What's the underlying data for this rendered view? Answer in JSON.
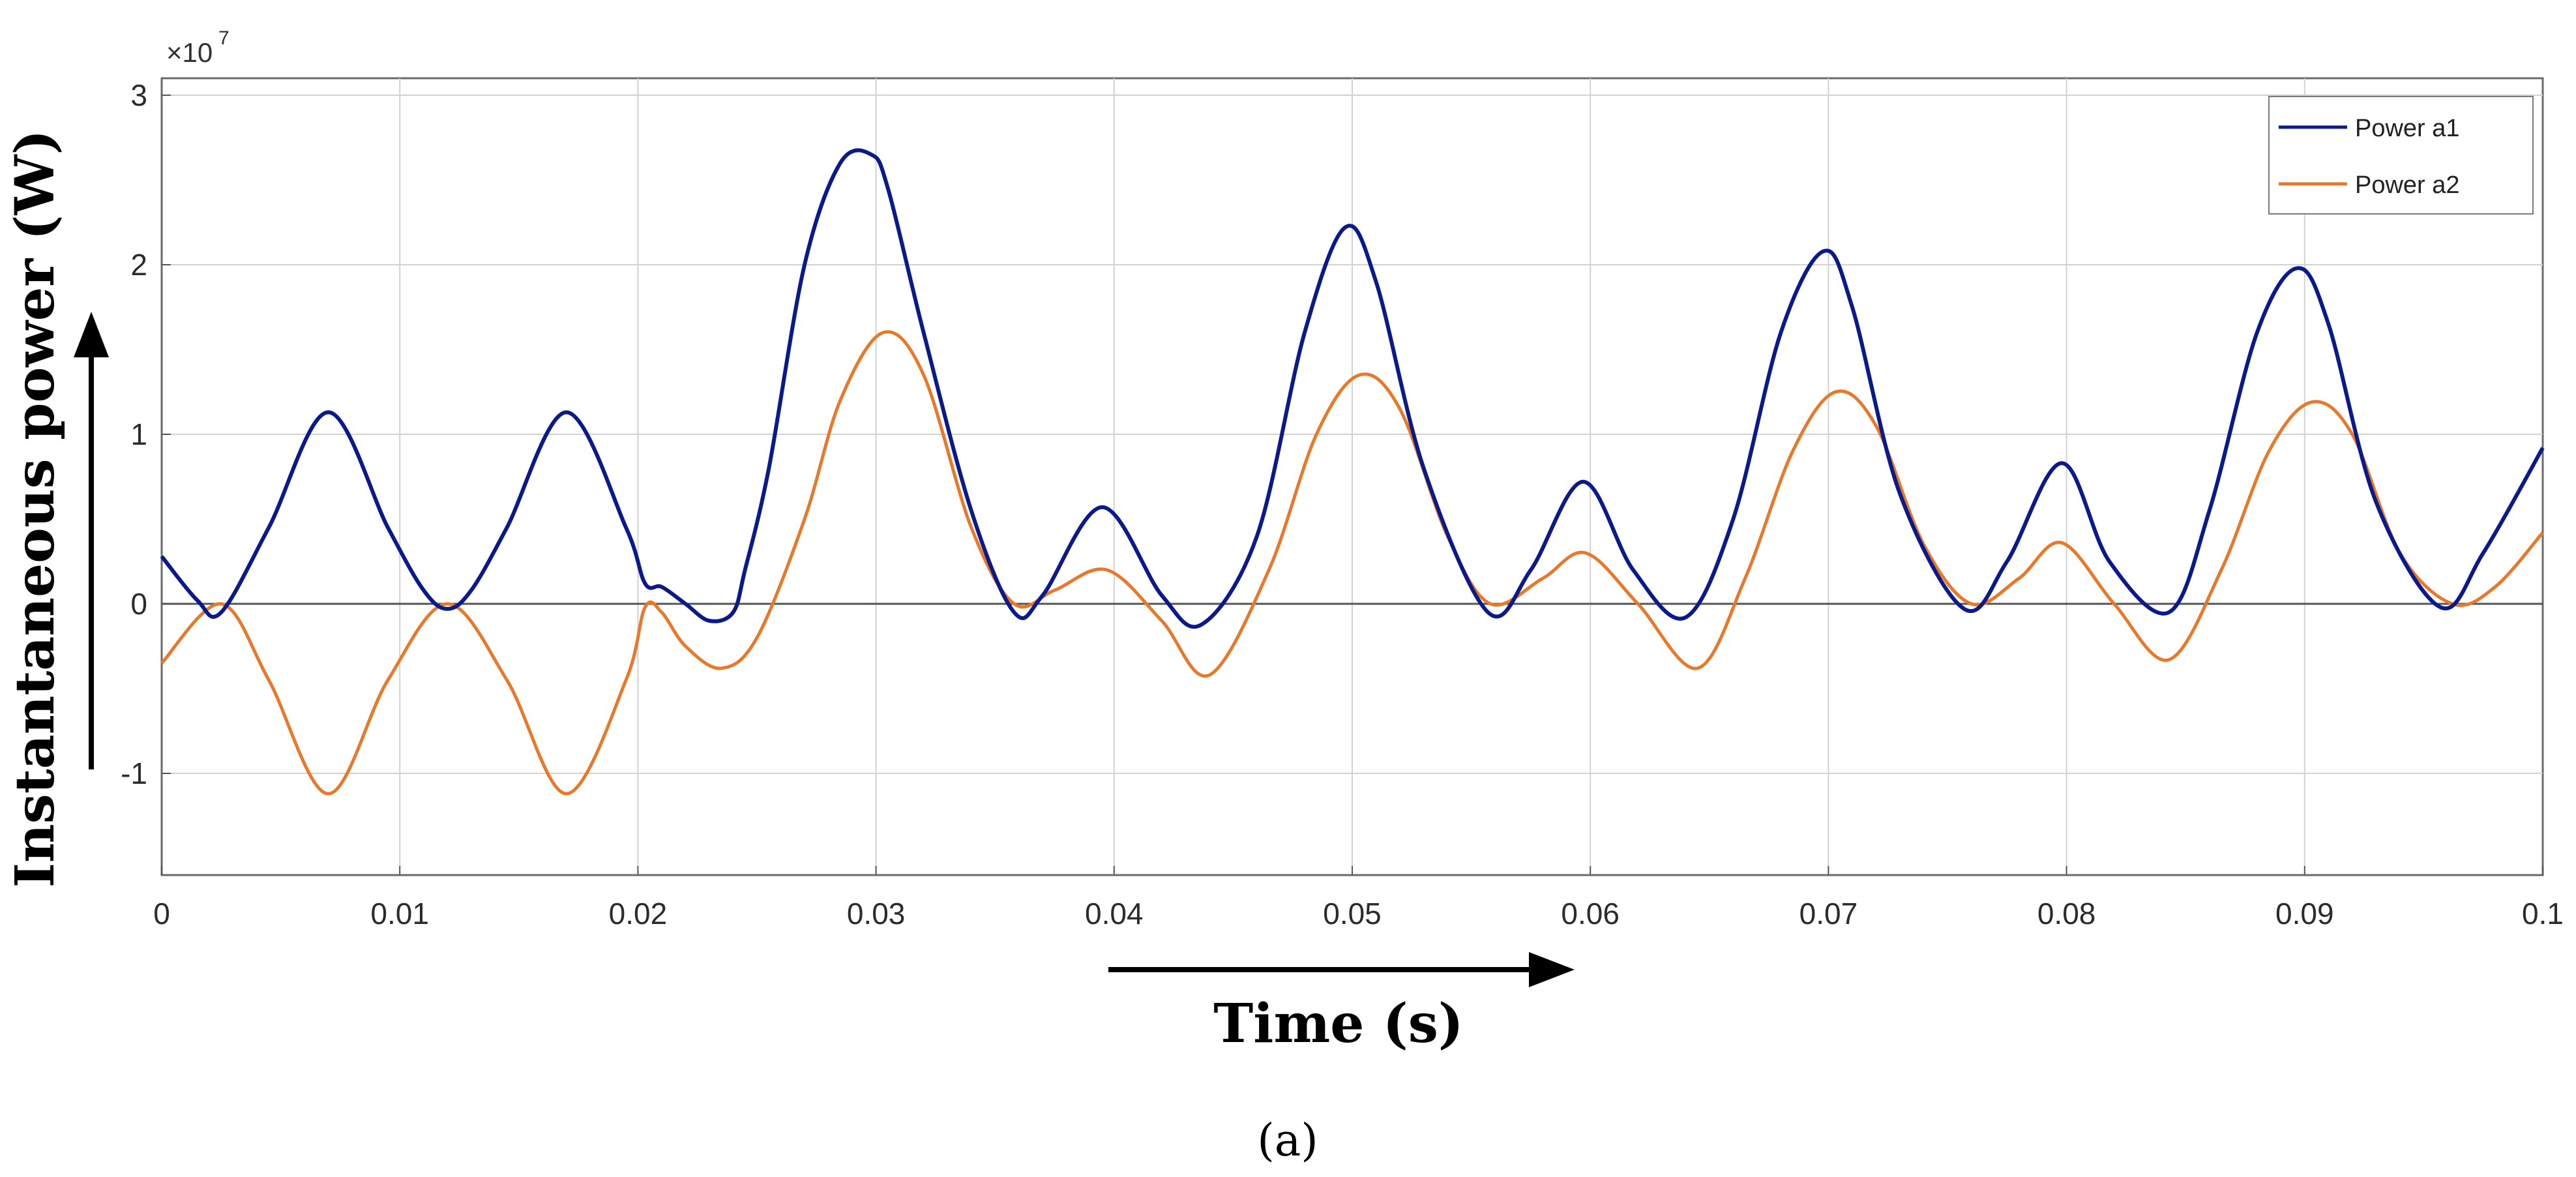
{
  "chart_data": {
    "type": "line",
    "title": "",
    "xlabel": "Time (s)",
    "ylabel": "Instantaneous power (W)",
    "y_exponent": "×10^7",
    "xlim": [
      0,
      0.1
    ],
    "ylim": [
      -1.6,
      3.1
    ],
    "xticks": [
      "0",
      "0.01",
      "0.02",
      "0.03",
      "0.04",
      "0.05",
      "0.06",
      "0.07",
      "0.08",
      "0.09",
      "0.1"
    ],
    "yticks": [
      "3",
      "2",
      "1",
      "0",
      "-1"
    ],
    "grid": true,
    "legend_position": "top-right",
    "series": [
      {
        "name": "Power a1",
        "color": "#0a1a8a",
        "x": [
          0,
          0.0015,
          0.0025,
          0.0045,
          0.007,
          0.0095,
          0.011,
          0.012,
          0.013,
          0.0145,
          0.017,
          0.0195,
          0.0203,
          0.021,
          0.022,
          0.023,
          0.024,
          0.0245,
          0.0255,
          0.027,
          0.0285,
          0.0298,
          0.0305,
          0.032,
          0.034,
          0.0358,
          0.037,
          0.0395,
          0.042,
          0.0437,
          0.046,
          0.048,
          0.0497,
          0.051,
          0.053,
          0.0557,
          0.0575,
          0.0597,
          0.0618,
          0.064,
          0.066,
          0.068,
          0.0698,
          0.071,
          0.073,
          0.0757,
          0.0775,
          0.0798,
          0.0818,
          0.0843,
          0.086,
          0.088,
          0.0897,
          0.091,
          0.093,
          0.0957,
          0.0975,
          0.1
        ],
        "y": [
          0.28,
          0.02,
          -0.05,
          0.45,
          1.13,
          0.45,
          0.08,
          -0.03,
          0.08,
          0.45,
          1.13,
          0.45,
          0.12,
          0.1,
          0.0,
          -0.1,
          -0.05,
          0.2,
          0.8,
          2.0,
          2.6,
          2.65,
          2.45,
          1.6,
          0.55,
          -0.05,
          0.05,
          0.57,
          0.05,
          -0.12,
          0.4,
          1.6,
          2.22,
          1.9,
          0.8,
          -0.05,
          0.2,
          0.72,
          0.2,
          -0.08,
          0.5,
          1.6,
          2.08,
          1.75,
          0.65,
          -0.03,
          0.25,
          0.83,
          0.25,
          -0.05,
          0.55,
          1.6,
          1.98,
          1.65,
          0.6,
          -0.02,
          0.3,
          0.92
        ]
      },
      {
        "name": "Power a2",
        "color": "#e8782a",
        "x": [
          0,
          0.0025,
          0.0045,
          0.007,
          0.0095,
          0.012,
          0.0145,
          0.017,
          0.0195,
          0.0203,
          0.021,
          0.022,
          0.0235,
          0.025,
          0.027,
          0.0285,
          0.0303,
          0.032,
          0.034,
          0.0358,
          0.0375,
          0.0397,
          0.042,
          0.044,
          0.0465,
          0.0485,
          0.0503,
          0.052,
          0.054,
          0.0558,
          0.058,
          0.0598,
          0.062,
          0.0645,
          0.0665,
          0.0685,
          0.0703,
          0.072,
          0.074,
          0.076,
          0.078,
          0.0798,
          0.082,
          0.0843,
          0.0865,
          0.0885,
          0.0903,
          0.092,
          0.094,
          0.0962,
          0.098,
          0.1
        ],
        "y": [
          -0.35,
          0.0,
          -0.45,
          -1.12,
          -0.45,
          0.0,
          -0.45,
          -1.12,
          -0.45,
          -0.02,
          -0.05,
          -0.25,
          -0.38,
          -0.2,
          0.5,
          1.2,
          1.6,
          1.35,
          0.45,
          0.0,
          0.08,
          0.2,
          -0.1,
          -0.42,
          0.2,
          1.0,
          1.35,
          1.15,
          0.4,
          0.0,
          0.15,
          0.3,
          0.0,
          -0.38,
          0.15,
          0.9,
          1.25,
          1.05,
          0.35,
          0.0,
          0.15,
          0.36,
          0.0,
          -0.33,
          0.2,
          0.9,
          1.19,
          1.0,
          0.3,
          0.0,
          0.1,
          0.42
        ]
      }
    ]
  },
  "caption": "(a)"
}
